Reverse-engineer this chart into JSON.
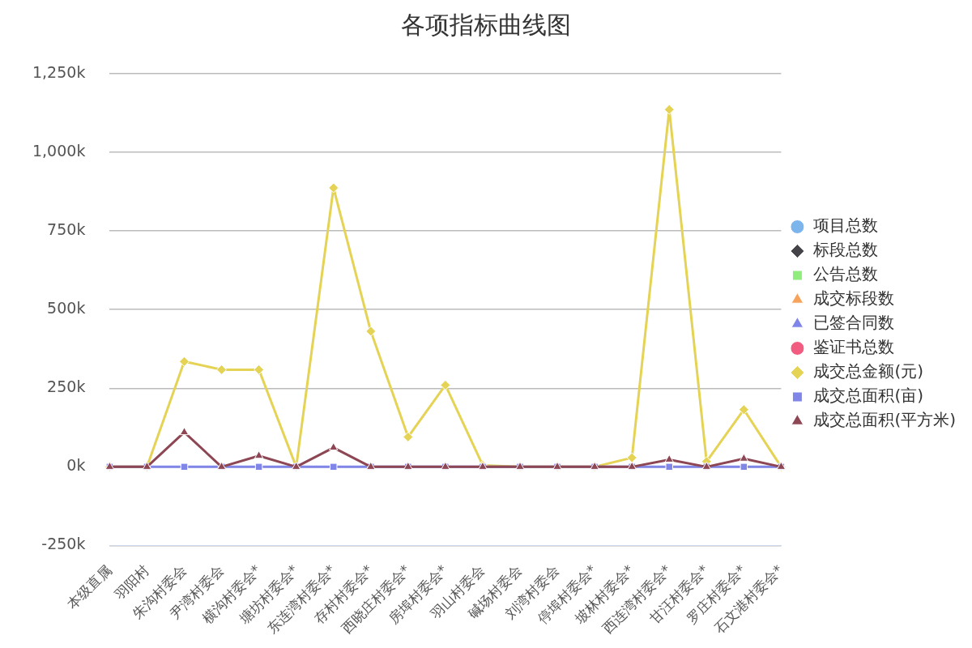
{
  "chart_data": {
    "type": "line",
    "title": "各项指标曲线图",
    "categories": [
      "本级直属",
      "羽阳村",
      "朱沟村委会",
      "尹湾村委会",
      "横沟村委会*",
      "塘坊村委会*",
      "东连湾村委会*",
      "存村村委会*",
      "西晓庄村委会*",
      "房埠村委会*",
      "羽山村委会",
      "碱场村委会",
      "刘湾村委会",
      "停埠村委会*",
      "坡林村委会*",
      "西连湾村委会*",
      "甘汪村委会*",
      "罗庄村委会*",
      "石文港村委会*"
    ],
    "series": [
      {
        "name": "项目总数",
        "color": "#7cb5ec",
        "marker": "circle",
        "values": [
          null,
          null,
          null,
          null,
          null,
          null,
          null,
          null,
          null,
          null,
          null,
          null,
          null,
          null,
          null,
          null,
          null,
          null,
          null
        ]
      },
      {
        "name": "标段总数",
        "color": "#434348",
        "marker": "diamond",
        "values": [
          null,
          null,
          null,
          null,
          null,
          null,
          null,
          null,
          null,
          null,
          null,
          null,
          null,
          null,
          null,
          null,
          null,
          null,
          null
        ]
      },
      {
        "name": "公告总数",
        "color": "#90ed7d",
        "marker": "square",
        "values": [
          null,
          null,
          null,
          null,
          null,
          null,
          null,
          null,
          null,
          null,
          null,
          null,
          null,
          null,
          null,
          null,
          null,
          null,
          null
        ]
      },
      {
        "name": "成交标段数",
        "color": "#f7a35c",
        "marker": "triangle",
        "values": [
          null,
          null,
          null,
          null,
          null,
          null,
          null,
          null,
          null,
          null,
          null,
          null,
          null,
          null,
          null,
          null,
          null,
          null,
          null
        ]
      },
      {
        "name": "已签合同数",
        "color": "#8085e9",
        "marker": "triangle",
        "values": [
          null,
          null,
          null,
          null,
          null,
          null,
          null,
          null,
          null,
          null,
          null,
          null,
          null,
          null,
          null,
          null,
          null,
          null,
          null
        ]
      },
      {
        "name": "鉴证书总数",
        "color": "#f15c80",
        "marker": "circle",
        "values": [
          null,
          null,
          null,
          null,
          null,
          null,
          null,
          null,
          null,
          null,
          null,
          null,
          null,
          null,
          null,
          null,
          null,
          null,
          null
        ]
      },
      {
        "name": "成交总金额(元)",
        "color": "#e4d354",
        "marker": "diamond",
        "values": [
          0,
          0,
          335000,
          309000,
          309000,
          0,
          887000,
          431000,
          95000,
          260000,
          5000,
          0,
          0,
          0,
          29000,
          1136000,
          17000,
          182000,
          0
        ]
      },
      {
        "name": "成交总面积(亩)",
        "color": "#8085e8",
        "marker": "square",
        "values": [
          0,
          0,
          0,
          0,
          0,
          0,
          0,
          0,
          0,
          0,
          0,
          0,
          0,
          0,
          0,
          0,
          0,
          0,
          0
        ]
      },
      {
        "name": "成交总面积(平方米)",
        "color": "#8d4653",
        "marker": "triangle",
        "values": [
          0,
          0,
          110000,
          0,
          35000,
          0,
          61000,
          0,
          0,
          0,
          0,
          0,
          0,
          0,
          0,
          23000,
          0,
          26000,
          0
        ]
      }
    ],
    "ylim": [
      -250000,
      1250000
    ],
    "yticks": [
      {
        "value": -250000,
        "label": "-250k"
      },
      {
        "value": 0,
        "label": "0k"
      },
      {
        "value": 250000,
        "label": "250k"
      },
      {
        "value": 500000,
        "label": "500k"
      },
      {
        "value": 750000,
        "label": "750k"
      },
      {
        "value": 1000000,
        "label": "1,000k"
      },
      {
        "value": 1250000,
        "label": "1,250k"
      }
    ],
    "grid": "y",
    "legend": "right",
    "line_style": "solid"
  }
}
